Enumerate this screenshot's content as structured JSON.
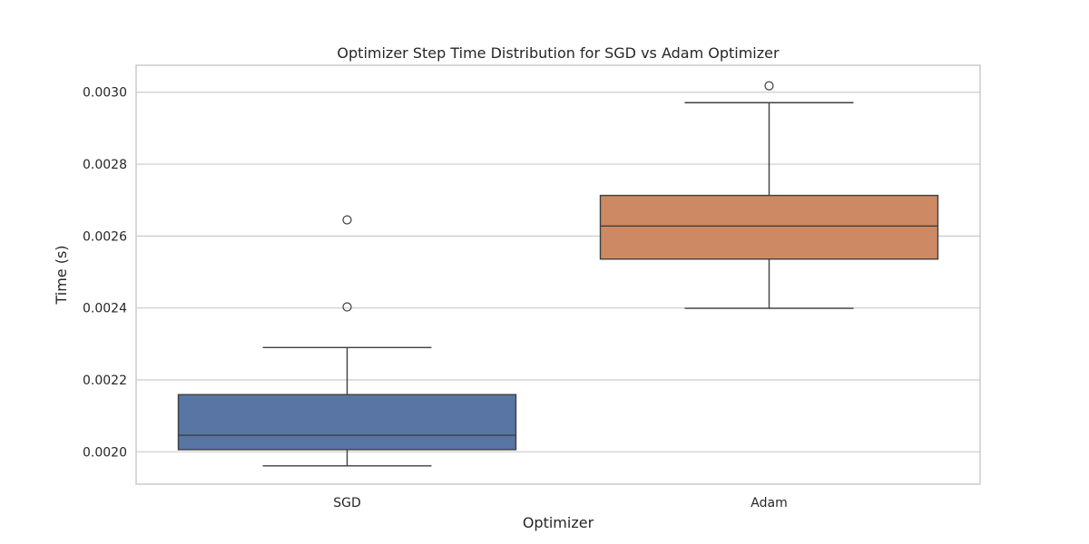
{
  "chart_data": {
    "type": "box",
    "title": "Optimizer Step Time Distribution for SGD vs Adam Optimizer",
    "xlabel": "Optimizer",
    "ylabel": "Time (s)",
    "ylim": [
      0.00191,
      0.003075
    ],
    "yticks": [
      0.002,
      0.0022,
      0.0024,
      0.0026,
      0.0028,
      0.003
    ],
    "ytick_labels": [
      "0.0020",
      "0.0022",
      "0.0024",
      "0.0026",
      "0.0028",
      "0.0030"
    ],
    "grid": true,
    "categories": [
      "SGD",
      "Adam"
    ],
    "boxes": [
      {
        "name": "SGD",
        "color": "#5875a4",
        "whisker_low": 0.001961,
        "q1": 0.002006,
        "median": 0.002046,
        "q3": 0.002159,
        "whisker_high": 0.00229,
        "outliers": [
          0.002403,
          0.002645
        ]
      },
      {
        "name": "Adam",
        "color": "#cc8963",
        "whisker_low": 0.002399,
        "q1": 0.002536,
        "median": 0.002628,
        "q3": 0.002713,
        "whisker_high": 0.002971,
        "outliers": [
          0.003018
        ]
      }
    ]
  }
}
